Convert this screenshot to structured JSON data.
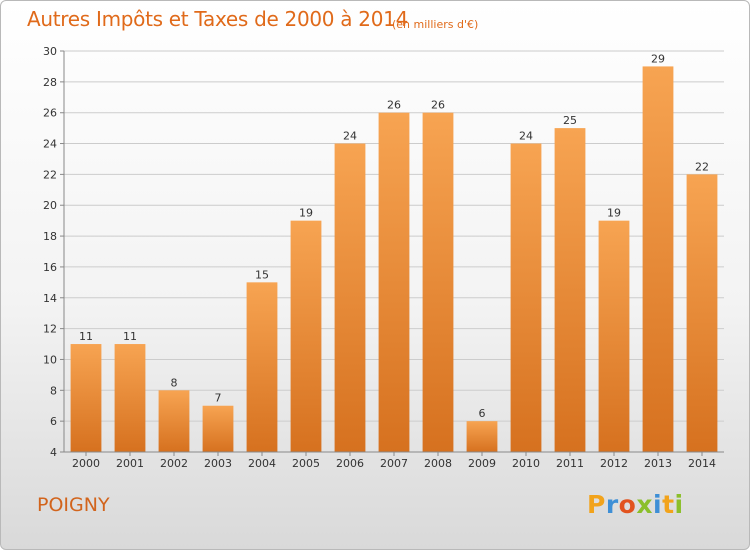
{
  "header": {
    "title": "Autres Impôts et Taxes de 2000 à 2014",
    "unit": "(en milliers d'€)"
  },
  "footer": {
    "location": "POIGNY",
    "logo": "Proxiti",
    "logo_letter_colors": [
      "#f2a31b",
      "#3e8fd6",
      "#e2531f",
      "#8bbf2a",
      "#3e8fd6",
      "#f2a31b",
      "#8bbf2a"
    ]
  },
  "colors": {
    "bar_top": "#f7a452",
    "bar_bottom": "#d6711f",
    "grid": "#cccccc",
    "axis": "#888888",
    "accent": "#e06a1a"
  },
  "chart_data": {
    "type": "bar",
    "title": "Autres Impôts et Taxes de 2000 à 2014",
    "subtitle": "(en milliers d'€)",
    "categories": [
      "2000",
      "2001",
      "2002",
      "2003",
      "2004",
      "2005",
      "2006",
      "2007",
      "2008",
      "2009",
      "2010",
      "2011",
      "2012",
      "2013",
      "2014"
    ],
    "values": [
      11,
      11,
      8,
      7,
      15,
      19,
      24,
      26,
      26,
      6,
      24,
      25,
      19,
      29,
      22
    ],
    "ylim": [
      4,
      30
    ],
    "yticks": [
      4,
      6,
      8,
      10,
      12,
      14,
      16,
      18,
      20,
      22,
      24,
      26,
      28,
      30
    ],
    "grid": true,
    "legend": "none"
  }
}
